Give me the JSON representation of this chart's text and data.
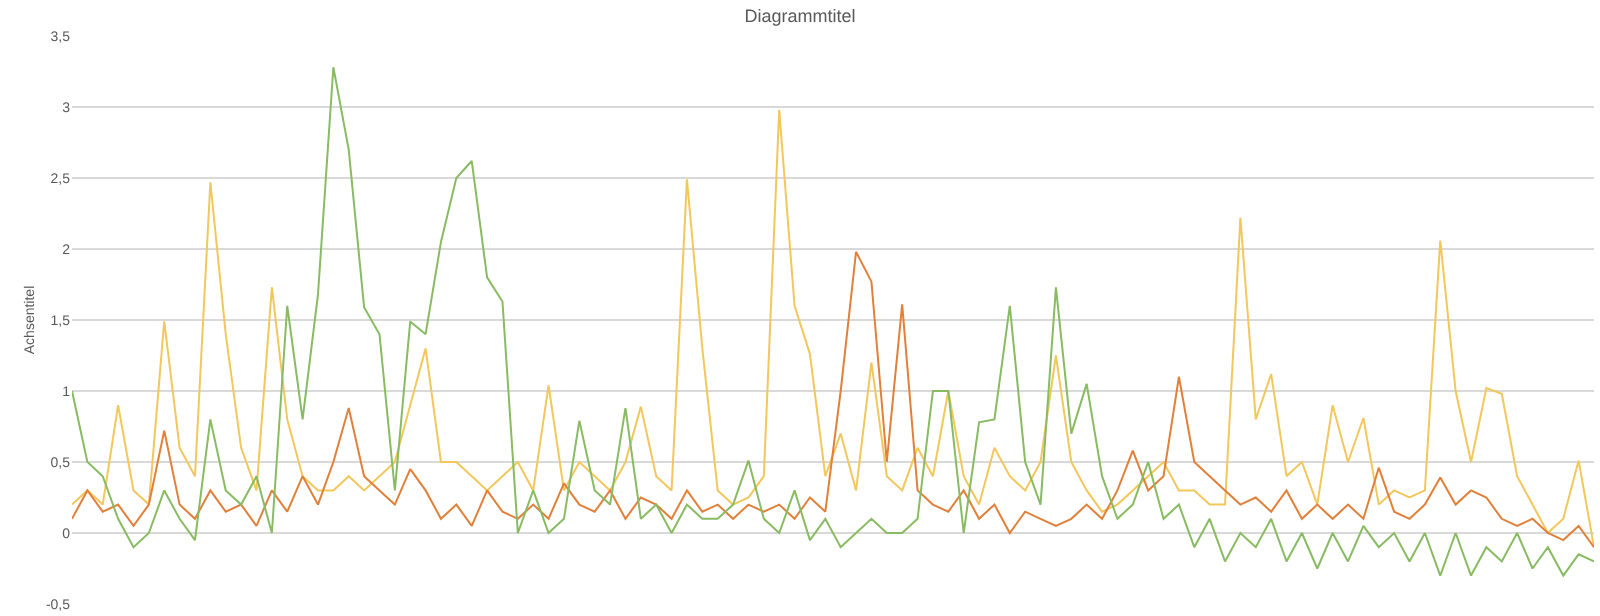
{
  "chart_data": {
    "type": "line",
    "title": "Diagrammtitel",
    "ylabel": "Achsentitel",
    "categories": [
      null,
      null,
      null,
      null,
      null,
      null,
      null,
      null,
      null,
      null,
      null,
      null,
      null,
      null,
      null,
      null,
      null,
      null,
      null,
      null,
      null,
      null,
      null,
      null,
      null,
      null,
      null,
      null,
      null,
      null,
      null,
      null,
      null,
      null,
      null,
      null,
      null,
      null,
      null,
      null,
      null,
      null,
      null,
      null,
      null,
      null,
      null,
      null,
      null,
      null,
      null,
      null,
      null,
      null,
      null,
      null,
      null,
      null,
      null,
      null,
      null,
      null,
      null,
      null,
      null,
      null,
      null,
      null,
      null,
      null,
      null,
      null,
      null,
      null,
      null,
      null,
      null,
      null,
      null,
      null,
      null,
      null,
      null,
      null,
      null,
      null,
      null,
      null,
      null,
      null,
      null,
      null,
      null,
      null,
      null,
      null,
      null,
      null,
      null,
      null
    ],
    "series": [
      {
        "color": "#f2c75c",
        "values": [
          0.2,
          0.3,
          0.2,
          0.9,
          0.3,
          0.2,
          1.49,
          0.6,
          0.4,
          2.47,
          1.4,
          0.6,
          0.3,
          1.73,
          0.8,
          0.4,
          0.3,
          0.3,
          0.4,
          0.3,
          0.4,
          0.5,
          0.9,
          1.3,
          0.5,
          0.5,
          0.4,
          0.3,
          0.4,
          0.5,
          0.3,
          1.04,
          0.3,
          0.5,
          0.4,
          0.3,
          0.5,
          0.89,
          0.4,
          0.3,
          2.49,
          1.3,
          0.3,
          0.2,
          0.25,
          0.4,
          2.98,
          1.6,
          1.26,
          0.4,
          0.7,
          0.3,
          1.2,
          0.4,
          0.3,
          0.6,
          0.4,
          1.0,
          0.4,
          0.2,
          0.6,
          0.4,
          0.3,
          0.5,
          1.25,
          0.5,
          0.3,
          0.15,
          0.2,
          0.3,
          0.4,
          0.5,
          0.3,
          0.3,
          0.2,
          0.2,
          2.22,
          0.8,
          1.12,
          0.4,
          0.5,
          0.2,
          0.9,
          0.5,
          0.81,
          0.2,
          0.3,
          0.25,
          0.3,
          2.06,
          1.0,
          0.5,
          1.02,
          0.98,
          0.4,
          0.2,
          0.0,
          0.1,
          0.51,
          -0.1
        ]
      },
      {
        "color": "#e0803a",
        "values": [
          0.1,
          0.3,
          0.15,
          0.2,
          0.05,
          0.2,
          0.72,
          0.2,
          0.1,
          0.3,
          0.15,
          0.2,
          0.05,
          0.3,
          0.15,
          0.4,
          0.2,
          0.5,
          0.88,
          0.4,
          0.3,
          0.2,
          0.45,
          0.3,
          0.1,
          0.2,
          0.05,
          0.3,
          0.15,
          0.1,
          0.2,
          0.1,
          0.35,
          0.2,
          0.15,
          0.3,
          0.1,
          0.25,
          0.2,
          0.1,
          0.3,
          0.15,
          0.2,
          0.1,
          0.2,
          0.15,
          0.2,
          0.1,
          0.25,
          0.15,
          1.0,
          1.98,
          1.77,
          0.5,
          1.61,
          0.3,
          0.2,
          0.15,
          0.3,
          0.1,
          0.2,
          0.0,
          0.15,
          0.1,
          0.05,
          0.1,
          0.2,
          0.1,
          0.3,
          0.58,
          0.3,
          0.4,
          1.1,
          0.5,
          0.4,
          0.3,
          0.2,
          0.25,
          0.15,
          0.3,
          0.1,
          0.2,
          0.1,
          0.2,
          0.1,
          0.46,
          0.15,
          0.1,
          0.2,
          0.39,
          0.2,
          0.3,
          0.25,
          0.1,
          0.05,
          0.1,
          0.0,
          -0.05,
          0.05,
          -0.1
        ]
      },
      {
        "color": "#88bb62",
        "values": [
          1.0,
          0.5,
          0.4,
          0.1,
          -0.1,
          0.0,
          0.3,
          0.1,
          -0.05,
          0.8,
          0.3,
          0.2,
          0.4,
          0.0,
          1.6,
          0.8,
          1.68,
          3.28,
          2.7,
          1.59,
          1.4,
          0.3,
          1.49,
          1.4,
          2.05,
          2.5,
          2.62,
          1.8,
          1.63,
          0.0,
          0.3,
          0.0,
          0.1,
          0.79,
          0.3,
          0.2,
          0.88,
          0.1,
          0.2,
          0.0,
          0.2,
          0.1,
          0.1,
          0.2,
          0.51,
          0.1,
          0.0,
          0.3,
          -0.05,
          0.1,
          -0.1,
          0.0,
          0.1,
          0.0,
          0.0,
          0.1,
          1.0,
          1.0,
          0.0,
          0.78,
          0.8,
          1.6,
          0.5,
          0.2,
          1.73,
          0.7,
          1.05,
          0.4,
          0.1,
          0.2,
          0.5,
          0.1,
          0.2,
          -0.1,
          0.1,
          -0.2,
          0.0,
          -0.1,
          0.1,
          -0.2,
          0.0,
          -0.25,
          0.0,
          -0.2,
          0.05,
          -0.1,
          0.0,
          -0.2,
          0.0,
          -0.3,
          0.0,
          -0.3,
          -0.1,
          -0.2,
          0.0,
          -0.25,
          -0.1,
          -0.3,
          -0.15,
          -0.2
        ]
      }
    ],
    "ylim": [
      -0.5,
      3.5
    ],
    "yticks": [
      {
        "value": -0.5,
        "label": "-0,5"
      },
      0,
      {
        "value": 0.5,
        "label": "0,5"
      },
      1,
      {
        "value": 1.5,
        "label": "1,5"
      },
      2,
      {
        "value": 2.5,
        "label": "2,5"
      },
      3,
      {
        "value": 3.5,
        "label": "3,5"
      }
    ],
    "grid": "y",
    "tick_labels": "y"
  }
}
